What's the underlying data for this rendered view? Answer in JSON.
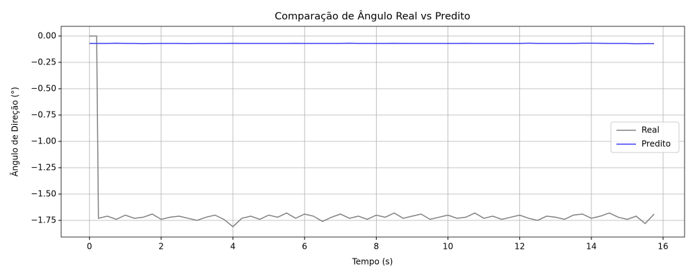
{
  "chart_data": {
    "type": "line",
    "title": "Comparação de Ângulo Real vs Predito",
    "xlabel": "Tempo (s)",
    "ylabel": "Ângulo de Direção (°)",
    "x": [
      0,
      0.2,
      0.25,
      0.5,
      0.75,
      1,
      1.25,
      1.5,
      1.75,
      2,
      2.25,
      2.5,
      2.75,
      3,
      3.25,
      3.5,
      3.75,
      4,
      4.25,
      4.5,
      4.75,
      5,
      5.25,
      5.5,
      5.75,
      6,
      6.25,
      6.5,
      6.75,
      7,
      7.25,
      7.5,
      7.75,
      8,
      8.25,
      8.5,
      8.75,
      9,
      9.25,
      9.5,
      9.75,
      10,
      10.25,
      10.5,
      10.75,
      11,
      11.25,
      11.5,
      11.75,
      12,
      12.25,
      12.5,
      12.75,
      13,
      13.25,
      13.5,
      13.75,
      14,
      14.25,
      14.5,
      14.75,
      15,
      15.25,
      15.5,
      15.75
    ],
    "series": [
      {
        "name": "Real",
        "color": "#808080",
        "values": [
          0,
          0,
          -1.73,
          -1.71,
          -1.74,
          -1.7,
          -1.73,
          -1.72,
          -1.69,
          -1.74,
          -1.72,
          -1.71,
          -1.73,
          -1.75,
          -1.72,
          -1.7,
          -1.74,
          -1.81,
          -1.73,
          -1.71,
          -1.74,
          -1.7,
          -1.72,
          -1.68,
          -1.73,
          -1.69,
          -1.71,
          -1.76,
          -1.72,
          -1.69,
          -1.73,
          -1.71,
          -1.74,
          -1.7,
          -1.72,
          -1.68,
          -1.73,
          -1.71,
          -1.69,
          -1.74,
          -1.72,
          -1.7,
          -1.73,
          -1.72,
          -1.68,
          -1.73,
          -1.71,
          -1.74,
          -1.72,
          -1.7,
          -1.73,
          -1.75,
          -1.71,
          -1.72,
          -1.74,
          -1.7,
          -1.69,
          -1.73,
          -1.71,
          -1.68,
          -1.72,
          -1.74,
          -1.71,
          -1.78,
          -1.69
        ]
      },
      {
        "name": "Predito",
        "color": "#3d3df2",
        "values": [
          -0.07,
          -0.07,
          -0.07,
          -0.07,
          -0.068,
          -0.07,
          -0.07,
          -0.072,
          -0.07,
          -0.07,
          -0.07,
          -0.07,
          -0.071,
          -0.07,
          -0.07,
          -0.07,
          -0.07,
          -0.069,
          -0.07,
          -0.07,
          -0.07,
          -0.07,
          -0.07,
          -0.07,
          -0.069,
          -0.07,
          -0.07,
          -0.07,
          -0.07,
          -0.07,
          -0.068,
          -0.07,
          -0.07,
          -0.07,
          -0.07,
          -0.069,
          -0.07,
          -0.07,
          -0.07,
          -0.07,
          -0.07,
          -0.07,
          -0.07,
          -0.069,
          -0.07,
          -0.07,
          -0.07,
          -0.07,
          -0.07,
          -0.07,
          -0.068,
          -0.07,
          -0.07,
          -0.07,
          -0.07,
          -0.07,
          -0.068,
          -0.068,
          -0.069,
          -0.07,
          -0.07,
          -0.07,
          -0.073,
          -0.072,
          -0.072
        ]
      }
    ],
    "xlim": [
      -0.79,
      16.6
    ],
    "xticks": [
      0,
      2,
      4,
      6,
      8,
      10,
      12,
      14,
      16
    ],
    "ylim": [
      -1.908,
      0.092
    ],
    "yticks": [
      {
        "value": -1.75,
        "label": "−1.75"
      },
      {
        "value": -1.5,
        "label": "−1.50"
      },
      {
        "value": -1.25,
        "label": "−1.25"
      },
      {
        "value": -1,
        "label": "−1.00"
      },
      {
        "value": -0.75,
        "label": "−0.75"
      },
      {
        "value": -0.5,
        "label": "−0.50"
      },
      {
        "value": -0.25,
        "label": "−0.25"
      },
      {
        "value": 0,
        "label": "0.00"
      }
    ],
    "grid": true,
    "legend": "center right"
  }
}
